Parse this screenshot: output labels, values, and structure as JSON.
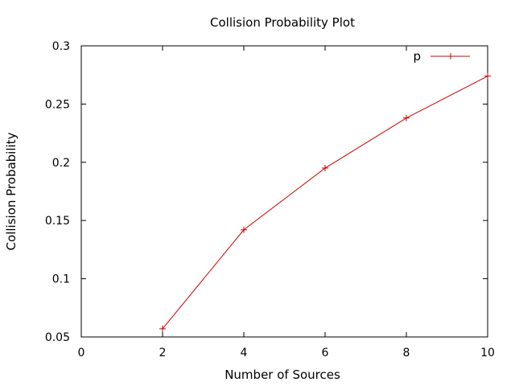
{
  "chart_data": {
    "type": "line",
    "title": "Collision Probability Plot",
    "xlabel": "Number of Sources",
    "ylabel": "Collision Probability",
    "xlim": [
      0,
      10
    ],
    "ylim": [
      0.05,
      0.3
    ],
    "xticks": [
      0,
      2,
      4,
      6,
      8,
      10
    ],
    "yticks": [
      0.05,
      0.1,
      0.15,
      0.2,
      0.25,
      0.3
    ],
    "xtick_labels": [
      "0",
      "2",
      "4",
      "6",
      "8",
      "10"
    ],
    "ytick_labels": [
      "0.05",
      "0.1",
      "0.15",
      "0.2",
      "0.25",
      "0.3"
    ],
    "grid": false,
    "legend_position": "top-right",
    "series": [
      {
        "name": "p",
        "color": "#cc0000",
        "marker": "plus",
        "x": [
          2,
          4,
          6,
          8,
          10
        ],
        "y": [
          0.057,
          0.142,
          0.195,
          0.238,
          0.274
        ]
      }
    ]
  }
}
